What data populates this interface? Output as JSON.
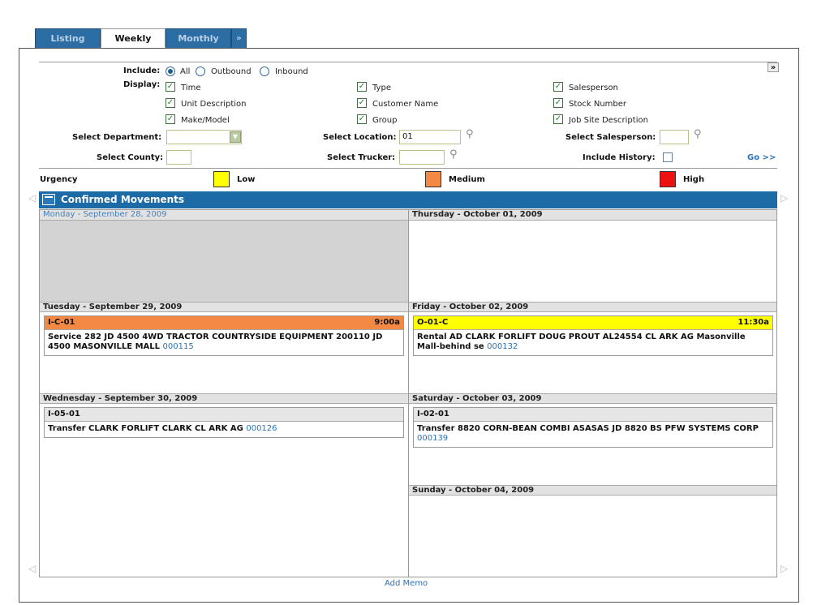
{
  "tabs": [
    {
      "label": "Listing"
    },
    {
      "label": "Weekly"
    },
    {
      "label": "Monthly"
    },
    {
      "label": "»"
    }
  ],
  "collapse_label": "»",
  "filters": {
    "include_label": "Include:",
    "include_options": [
      "All",
      "Outbound",
      "Inbound"
    ],
    "include_selected": "All",
    "display_label": "Display:",
    "display_options": [
      {
        "label": "Time",
        "checked": true
      },
      {
        "label": "Type",
        "checked": true
      },
      {
        "label": "Salesperson",
        "checked": true
      },
      {
        "label": "Unit Description",
        "checked": true
      },
      {
        "label": "Customer Name",
        "checked": true
      },
      {
        "label": "Stock Number",
        "checked": true
      },
      {
        "label": "Make/Model",
        "checked": true
      },
      {
        "label": "Group",
        "checked": true
      },
      {
        "label": "Job Site Description",
        "checked": true
      }
    ],
    "select_department_label": "Select Department:",
    "select_department_value": "",
    "select_location_label": "Select Location:",
    "select_location_value": "01",
    "select_salesperson_label": "Select Salesperson:",
    "select_salesperson_value": "",
    "select_county_label": "Select County:",
    "select_county_value": "",
    "select_trucker_label": "Select Trucker:",
    "select_trucker_value": "",
    "include_history_label": "Include History:",
    "include_history_checked": false,
    "go_label": "Go >>"
  },
  "urgency": {
    "label": "Urgency",
    "levels": [
      {
        "name": "Low",
        "color": "#ffff00"
      },
      {
        "name": "Medium",
        "color": "#f28a46"
      },
      {
        "name": "High",
        "color": "#ee1111"
      }
    ]
  },
  "section_title": "Confirmed Movements",
  "days": {
    "mon": {
      "label": "Monday - September  28, 2009"
    },
    "tue": {
      "label": "Tuesday - September  29, 2009"
    },
    "wed": {
      "label": "Wednesday - September  30, 2009"
    },
    "thu": {
      "label": "Thursday - October  01, 2009"
    },
    "fri": {
      "label": "Friday - October  02, 2009"
    },
    "sat": {
      "label": "Saturday - October  03, 2009"
    },
    "sun": {
      "label": "Sunday - October  04, 2009"
    }
  },
  "movements": {
    "tue": {
      "code": "I-C-01",
      "time": "9:00a",
      "urgency": "Medium",
      "color": "#f28a46",
      "text": "Service 282 JD 4500 4WD TRACTOR COUNTRYSIDE EQUIPMENT 200110 JD 4500 MASONVILLE MALL",
      "link": "000115"
    },
    "wed": {
      "code": "I-05-01",
      "time": "",
      "urgency": "",
      "color": "#e6e6e6",
      "text": "Transfer CLARK FORLIFT CLARK CL ARK AG",
      "link": "000126"
    },
    "fri": {
      "code": "O-01-C",
      "time": "11:30a",
      "urgency": "Low",
      "color": "#ffff00",
      "text": "Rental AD CLARK FORLIFT DOUG PROUT AL24554 CL ARK AG Masonville Mall-behind se",
      "link": "000132"
    },
    "sat": {
      "code": "I-02-01",
      "time": "",
      "urgency": "",
      "color": "#e6e6e6",
      "text": "Transfer 8820 CORN-BEAN COMBI ASASAS JD 8820 BS PFW SYSTEMS CORP",
      "link": "000139"
    }
  },
  "add_memo_label": "Add Memo"
}
